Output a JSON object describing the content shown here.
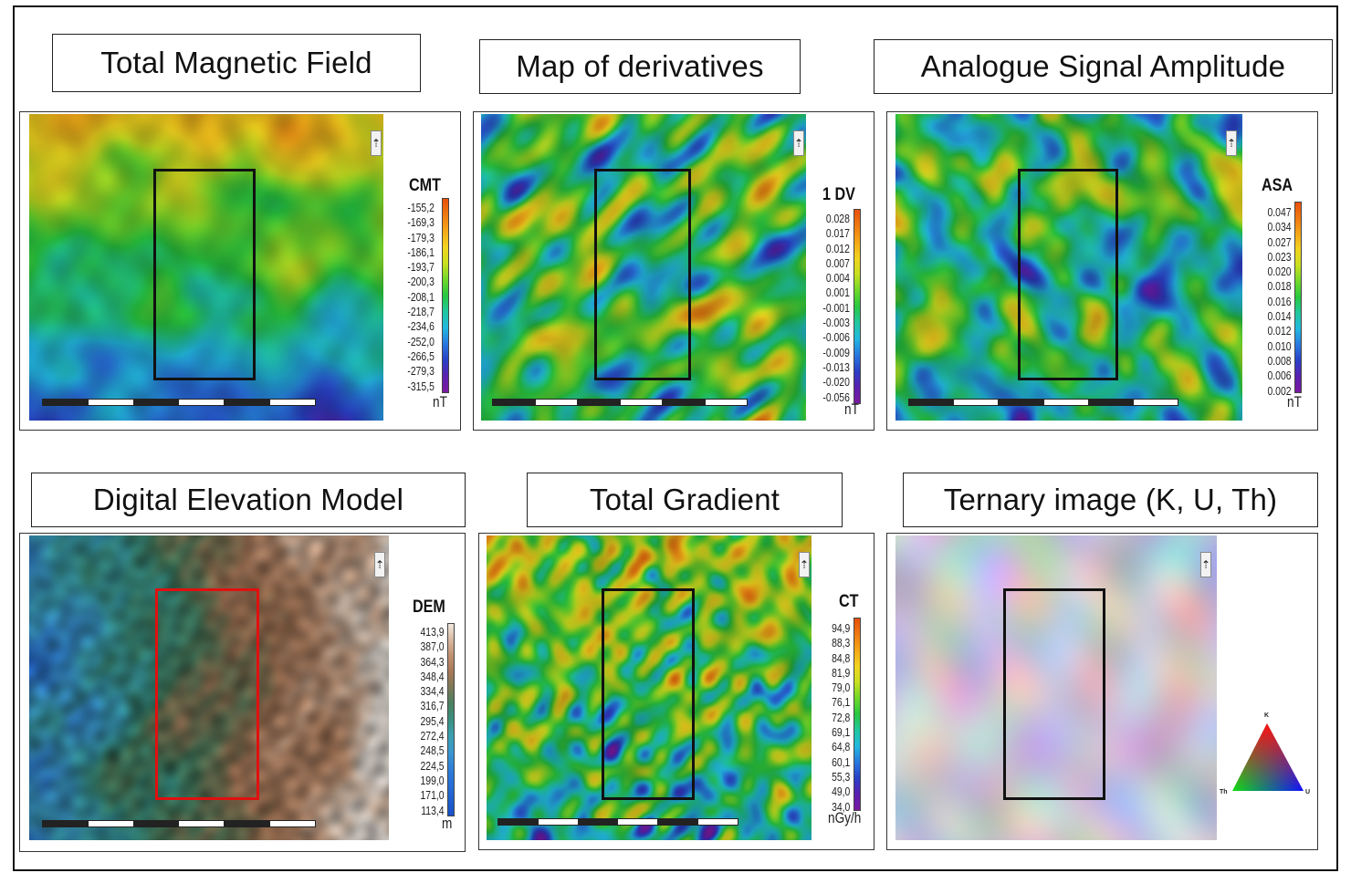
{
  "panels": [
    {
      "id": "tmf",
      "title": "Total Magnetic Field",
      "legend_title": "CMT",
      "values": [
        "-155,2",
        "-169,3",
        "-179,3",
        "-186,1",
        "-193,7",
        "-200,3",
        "-208,1",
        "-218,7",
        "-234,6",
        "-252,0",
        "-266,5",
        "-279,3",
        "-315,5"
      ],
      "unit": "nT",
      "colormap": "rainbow",
      "rectangle_color": "#111111"
    },
    {
      "id": "derivatives",
      "title": "Map of derivatives",
      "legend_title": "1 DV",
      "values": [
        "0.028",
        "0.017",
        "0.012",
        "0.007",
        "0.004",
        "0.001",
        "-0.001",
        "-0.003",
        "-0.006",
        "-0.009",
        "-0.013",
        "-0.020",
        "-0.056"
      ],
      "unit": "nT",
      "colormap": "rainbow",
      "rectangle_color": "#111111"
    },
    {
      "id": "asa",
      "title": "Analogue Signal Amplitude",
      "legend_title": "ASA",
      "values": [
        "0.047",
        "0.034",
        "0.027",
        "0.023",
        "0.020",
        "0.018",
        "0.016",
        "0.014",
        "0.012",
        "0.010",
        "0.008",
        "0.006",
        "0.002"
      ],
      "unit": "nT",
      "colormap": "rainbow",
      "rectangle_color": "#111111"
    },
    {
      "id": "dem",
      "title": "Digital Elevation Model",
      "legend_title": "DEM",
      "values": [
        "413,9",
        "387,0",
        "364,3",
        "348,4",
        "334,4",
        "316,7",
        "295,4",
        "272,4",
        "248,5",
        "224,5",
        "199,0",
        "171,0",
        "113,4"
      ],
      "unit": "m",
      "colormap": "terrain",
      "rectangle_color": "#e01010"
    },
    {
      "id": "tg",
      "title": "Total Gradient",
      "legend_title": "CT",
      "values": [
        "94,9",
        "88,3",
        "84,8",
        "81,9",
        "79,0",
        "76,1",
        "72,8",
        "69,1",
        "64,8",
        "60,1",
        "55,3",
        "49,0",
        "34,0"
      ],
      "unit": "nGy/h",
      "colormap": "rainbow",
      "rectangle_color": "#111111"
    },
    {
      "id": "ternary",
      "title": "Ternary image (K, U, Th)",
      "colormap": "ternary",
      "rectangle_color": "#111111",
      "triangle_labels": {
        "top": "K",
        "left": "Th",
        "right": "U"
      }
    }
  ]
}
